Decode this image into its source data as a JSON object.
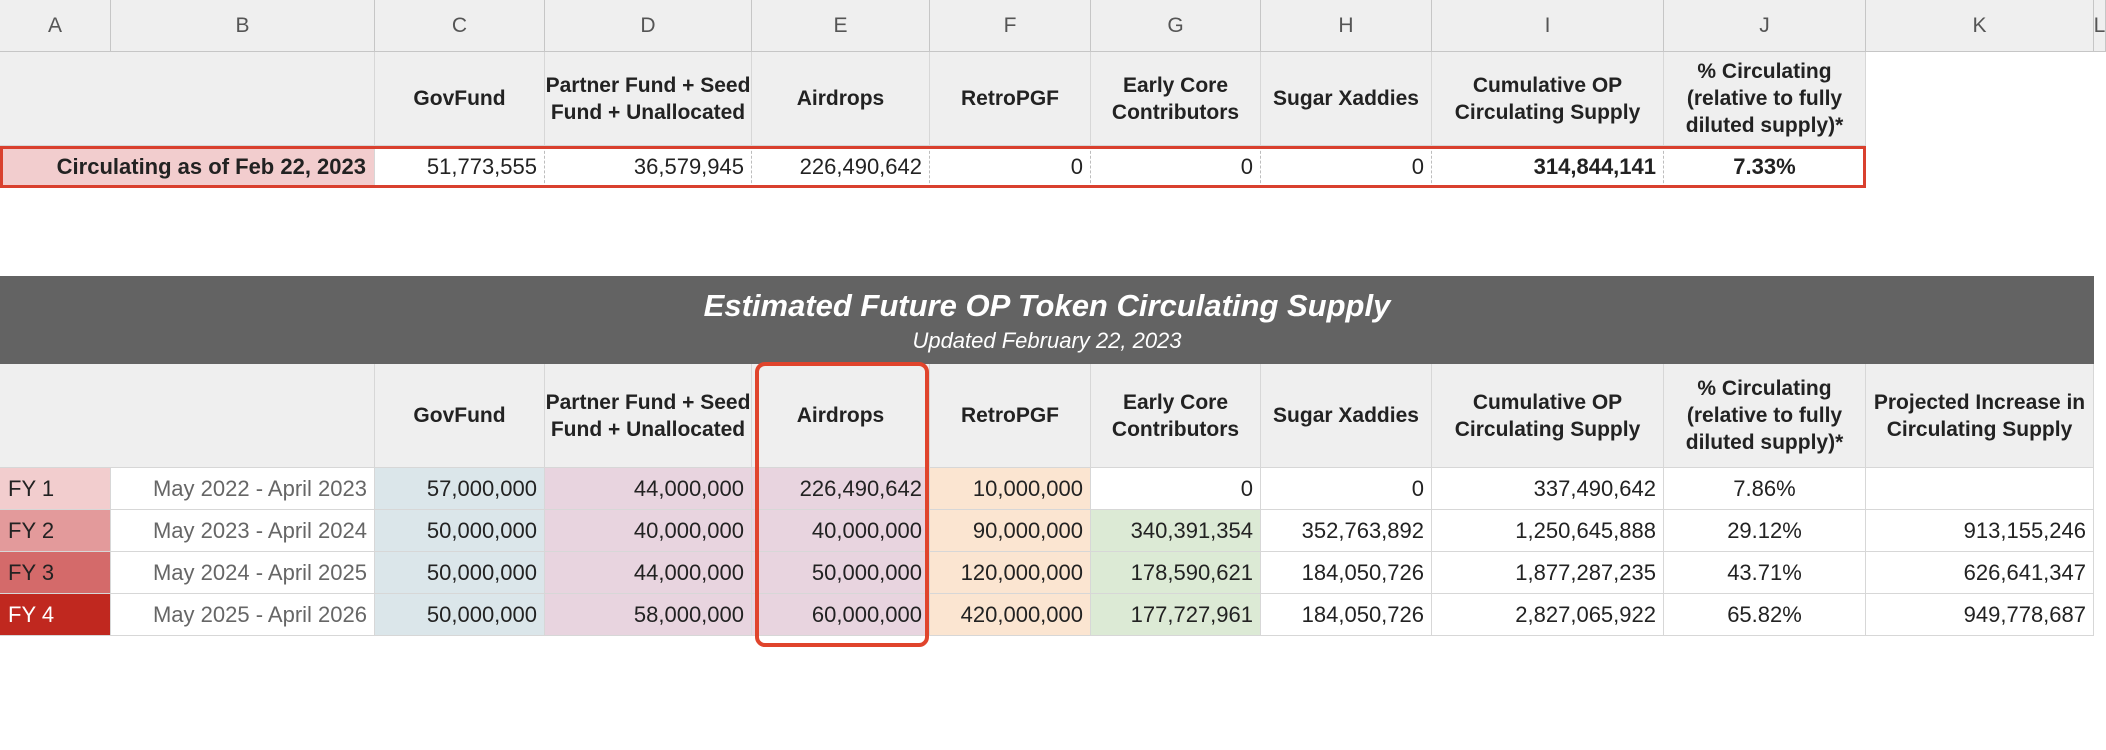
{
  "columns": [
    "A",
    "B",
    "C",
    "D",
    "E",
    "F",
    "G",
    "H",
    "I",
    "J",
    "K",
    "L"
  ],
  "headers": {
    "govfund": "GovFund",
    "partner_fund": "Partner Fund + Seed Fund + Unallocated",
    "airdrops": "Airdrops",
    "retropgf": "RetroPGF",
    "early_core": "Early Core Contributors",
    "sugar": "Sugar Xaddies",
    "cumulative": "Cumulative OP Circulating Supply",
    "pct_circ": "% Circulating (relative to fully diluted supply)*",
    "projected": "Projected Increase in Circulating Supply"
  },
  "current": {
    "label": "Circulating as of Feb 22, 2023",
    "values": [
      "51,773,555",
      "36,579,945",
      "226,490,642",
      "0",
      "0",
      "0",
      "314,844,141",
      "7.33%"
    ]
  },
  "banner": {
    "title": "Estimated Future OP Token Circulating Supply",
    "subtitle": "Updated February 22, 2023"
  },
  "rows": [
    {
      "fy": "FY 1",
      "period": "May 2022 - April 2023",
      "govfund": "57,000,000",
      "partner": "44,000,000",
      "airdrops": "226,490,642",
      "retro": "10,000,000",
      "early": "0",
      "sugar": "0",
      "cumulative": "337,490,642",
      "pct": "7.86%",
      "projected": ""
    },
    {
      "fy": "FY 2",
      "period": "May 2023 - April 2024",
      "govfund": "50,000,000",
      "partner": "40,000,000",
      "airdrops": "40,000,000",
      "retro": "90,000,000",
      "early": "340,391,354",
      "sugar": "352,763,892",
      "cumulative": "1,250,645,888",
      "pct": "29.12%",
      "projected": "913,155,246"
    },
    {
      "fy": "FY 3",
      "period": "May 2024 - April 2025",
      "govfund": "50,000,000",
      "partner": "44,000,000",
      "airdrops": "50,000,000",
      "retro": "120,000,000",
      "early": "178,590,621",
      "sugar": "184,050,726",
      "cumulative": "1,877,287,235",
      "pct": "43.71%",
      "projected": "626,641,347"
    },
    {
      "fy": "FY 4",
      "period": "May 2025 - April 2026",
      "govfund": "50,000,000",
      "partner": "58,000,000",
      "airdrops": "60,000,000",
      "retro": "420,000,000",
      "early": "177,727,961",
      "sugar": "184,050,726",
      "cumulative": "2,827,065,922",
      "pct": "65.82%",
      "projected": "949,778,687"
    }
  ],
  "colors": {
    "fy_colors": [
      "#f2cdce",
      "#e39a9b",
      "#d46a6a",
      "#c0281f"
    ],
    "govfund_bg": "#dbe6ea",
    "partner_bg": "#e8d4df",
    "retro_bg": "#fbe5d1",
    "early_bg": "#dcead5",
    "current_label_bg": "#f2cdce",
    "banner_bg": "#636363",
    "highlight": "#d9402e"
  }
}
